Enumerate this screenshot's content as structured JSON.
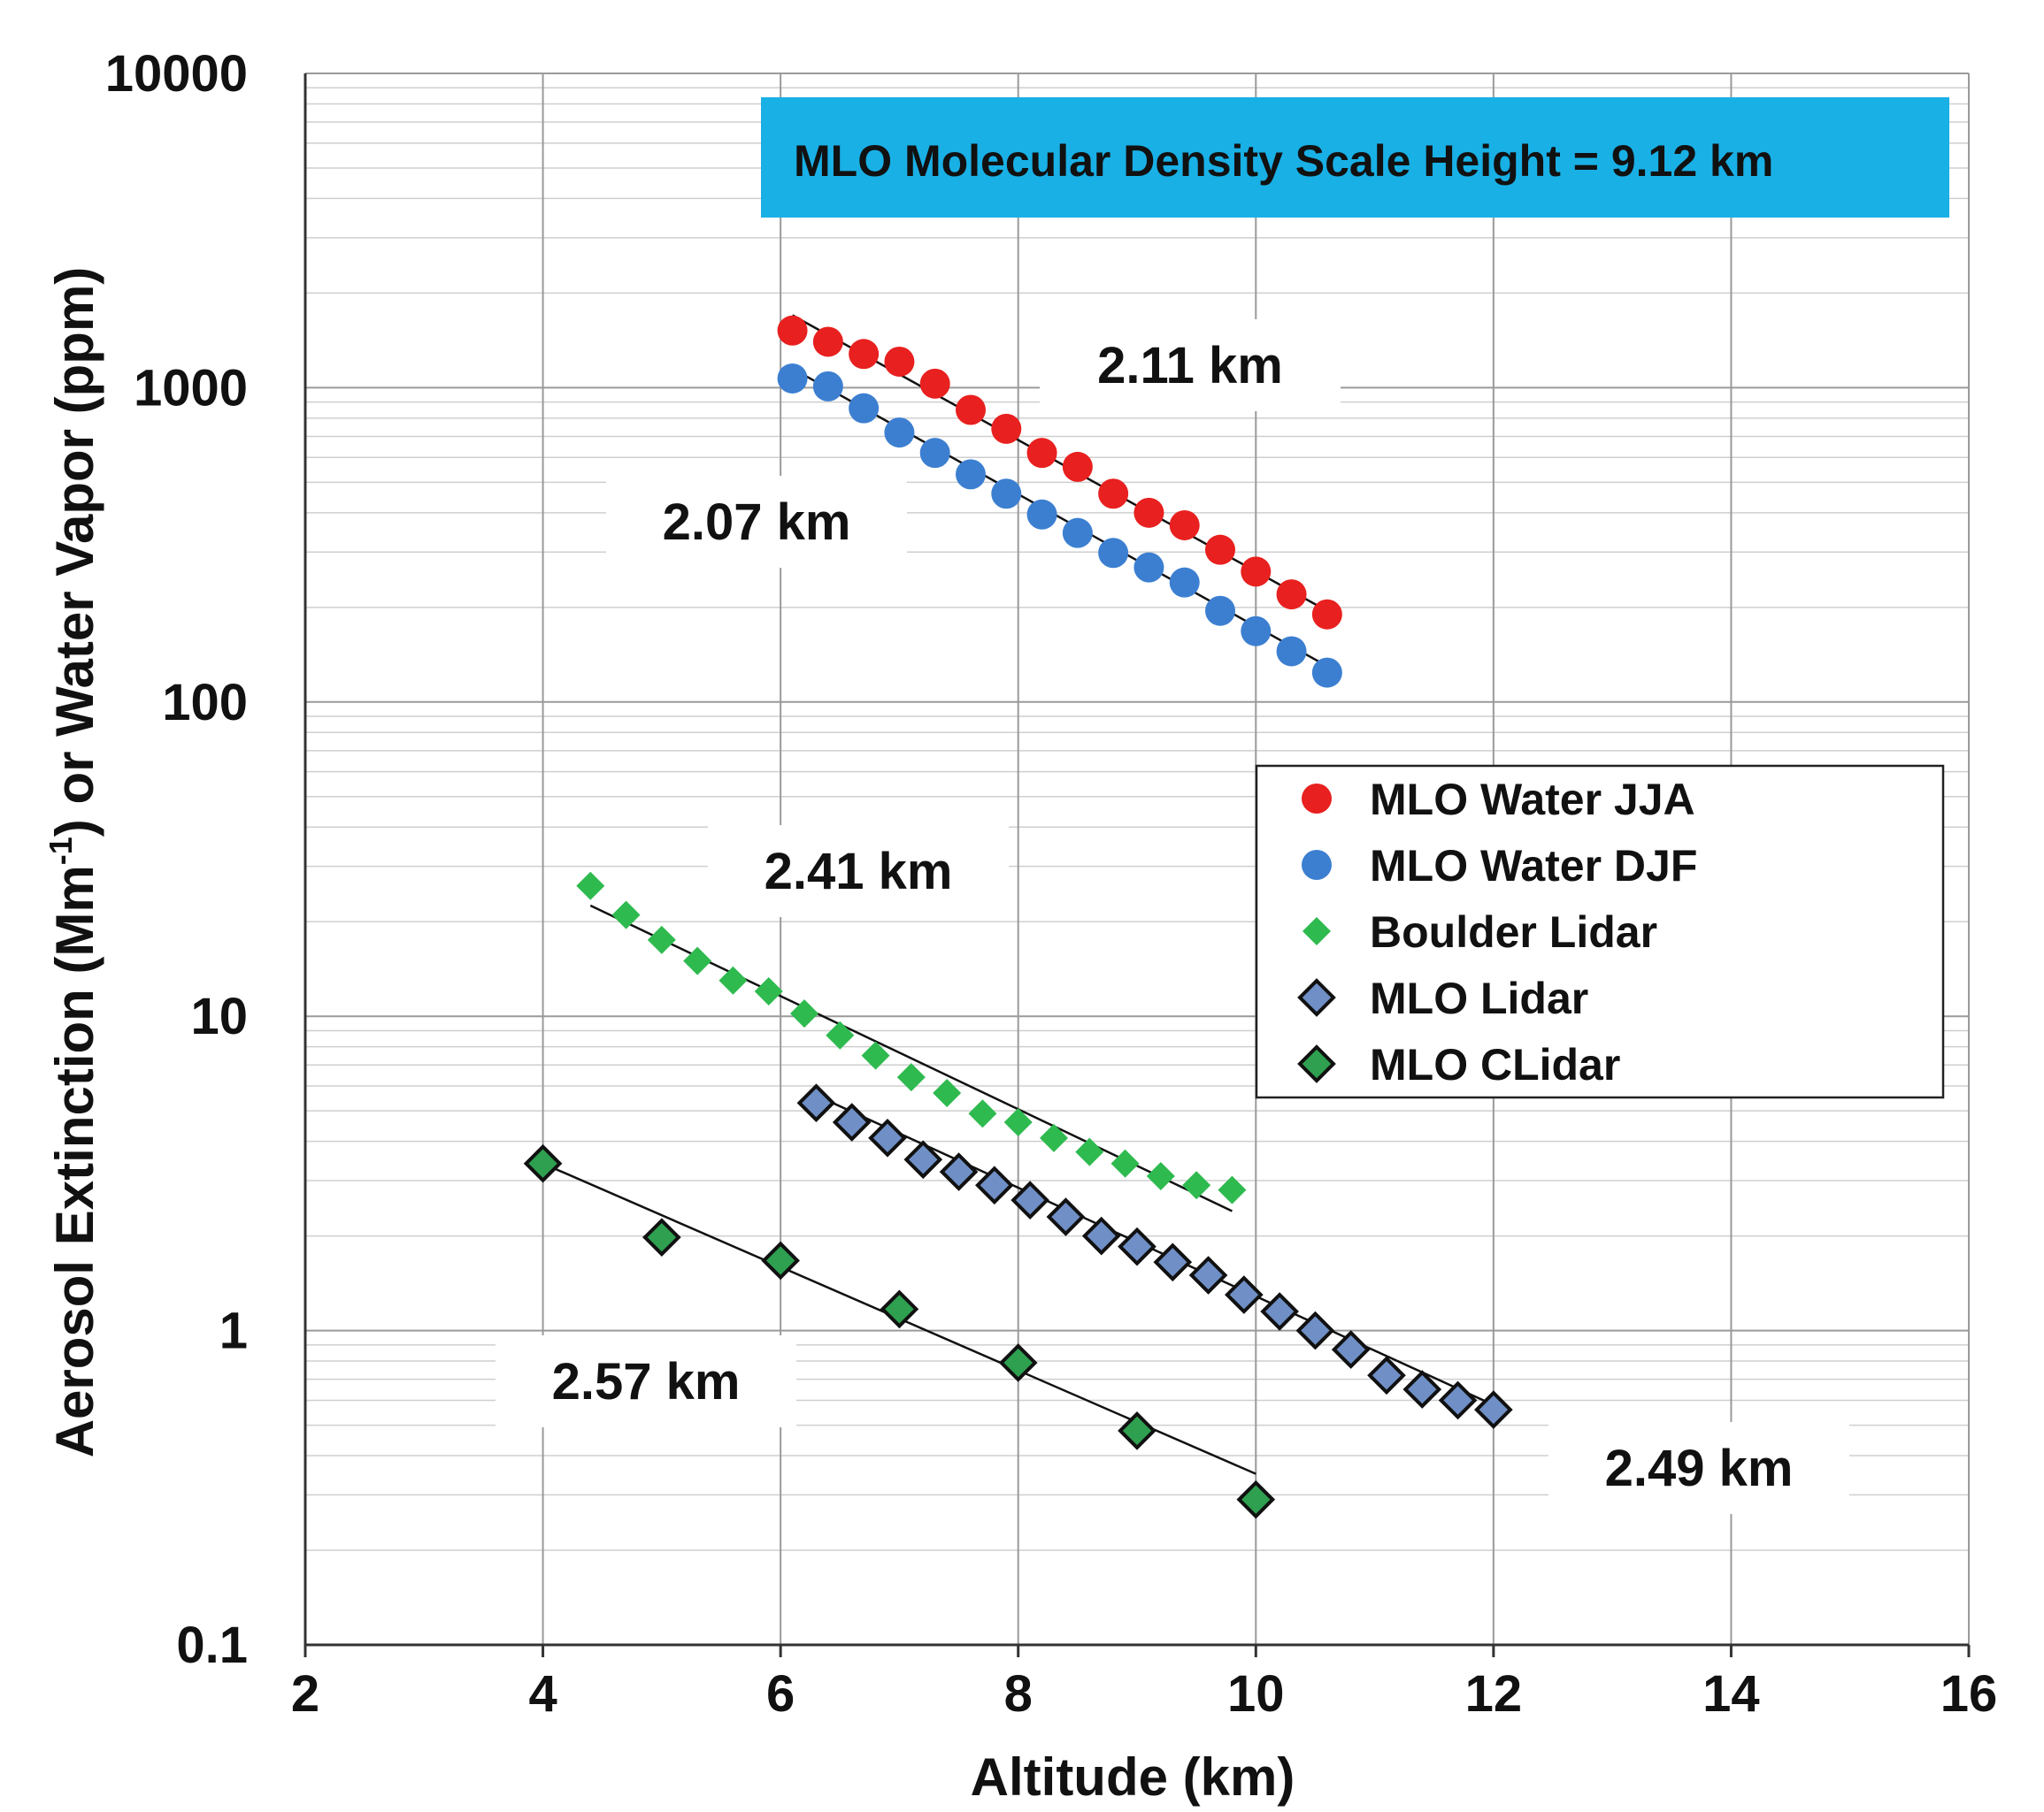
{
  "chart_data": {
    "type": "scatter",
    "xlabel": "Altitude (km)",
    "ylabel_parts": [
      "Aerosol Extinction (Mm",
      "-1",
      ") or Water Vapor (ppm)"
    ],
    "xlim": [
      2,
      16
    ],
    "ylim": [
      0.1,
      10000
    ],
    "yscale": "log",
    "grid": true,
    "x_ticks": [
      2,
      4,
      6,
      8,
      10,
      12,
      14,
      16
    ],
    "y_ticks": [
      0.1,
      1,
      10,
      100,
      1000,
      10000
    ],
    "x_tick_labels": [
      "2",
      "4",
      "6",
      "8",
      "10",
      "12",
      "14",
      "16"
    ],
    "y_tick_labels": [
      "0.1",
      "1",
      "10",
      "100",
      "1000",
      "10000"
    ],
    "banner": "MLO Molecular Density Scale Height = 9.12 km",
    "legend_position": "right",
    "series": [
      {
        "name": "MLO Water JJA",
        "marker": "circle",
        "color": "#e8201f",
        "x": [
          6.1,
          6.4,
          6.7,
          7.0,
          7.3,
          7.6,
          7.9,
          8.2,
          8.5,
          8.8,
          9.1,
          9.4,
          9.7,
          10.0,
          10.3,
          10.6
        ],
        "y": [
          1520,
          1400,
          1280,
          1210,
          1030,
          850,
          740,
          620,
          560,
          460,
          400,
          365,
          305,
          260,
          220,
          190
        ],
        "fit": {
          "x": [
            6.1,
            10.6
          ],
          "y": [
            1700,
            195
          ]
        }
      },
      {
        "name": "MLO Water DJF",
        "marker": "circle",
        "color": "#3c7fd1",
        "x": [
          6.1,
          6.4,
          6.7,
          7.0,
          7.3,
          7.6,
          7.9,
          8.2,
          8.5,
          8.8,
          9.1,
          9.4,
          9.7,
          10.0,
          10.3,
          10.6
        ],
        "y": [
          1070,
          1010,
          860,
          720,
          620,
          530,
          460,
          395,
          345,
          298,
          268,
          240,
          195,
          168,
          145,
          124
        ],
        "fit": {
          "x": [
            6.1,
            10.6
          ],
          "y": [
            1150,
            130
          ]
        }
      },
      {
        "name": "Boulder Lidar",
        "marker": "diamond-small",
        "color": "#2fba4f",
        "x": [
          4.4,
          4.7,
          5.0,
          5.3,
          5.6,
          5.9,
          6.2,
          6.5,
          6.8,
          7.1,
          7.4,
          7.7,
          8.0,
          8.3,
          8.6,
          8.9,
          9.2,
          9.5,
          9.8
        ],
        "y": [
          26,
          21,
          17.5,
          15,
          13,
          12,
          10.2,
          8.7,
          7.5,
          6.4,
          5.7,
          4.9,
          4.6,
          4.1,
          3.7,
          3.4,
          3.1,
          2.9,
          2.8
        ],
        "fit": {
          "x": [
            4.4,
            9.8
          ],
          "y": [
            22.5,
            2.4
          ]
        }
      },
      {
        "name": "MLO Lidar",
        "marker": "diamond",
        "color": "#6f8fc6",
        "x": [
          6.3,
          6.6,
          6.9,
          7.2,
          7.5,
          7.8,
          8.1,
          8.4,
          8.7,
          9.0,
          9.3,
          9.6,
          9.9,
          10.2,
          10.5,
          10.8,
          11.1,
          11.4,
          11.7,
          12.0
        ],
        "y": [
          5.3,
          4.6,
          4.1,
          3.5,
          3.2,
          2.9,
          2.6,
          2.3,
          2.0,
          1.85,
          1.65,
          1.5,
          1.3,
          1.15,
          1.0,
          0.87,
          0.72,
          0.65,
          0.6,
          0.56
        ],
        "fit": {
          "x": [
            6.3,
            12.0
          ],
          "y": [
            5.6,
            0.58
          ]
        }
      },
      {
        "name": "MLO CLidar",
        "marker": "diamond",
        "color": "#2ea050",
        "x": [
          4.0,
          5.0,
          6.0,
          7.0,
          8.0,
          9.0,
          10.0
        ],
        "y": [
          3.4,
          1.98,
          1.67,
          1.17,
          0.79,
          0.48,
          0.29
        ],
        "fit": {
          "x": [
            4.0,
            10.0
          ],
          "y": [
            3.4,
            0.35
          ]
        }
      }
    ],
    "annotations": [
      "2.11 km",
      "2.07 km",
      "2.41 km",
      "2.57 km",
      "2.49 km"
    ]
  }
}
